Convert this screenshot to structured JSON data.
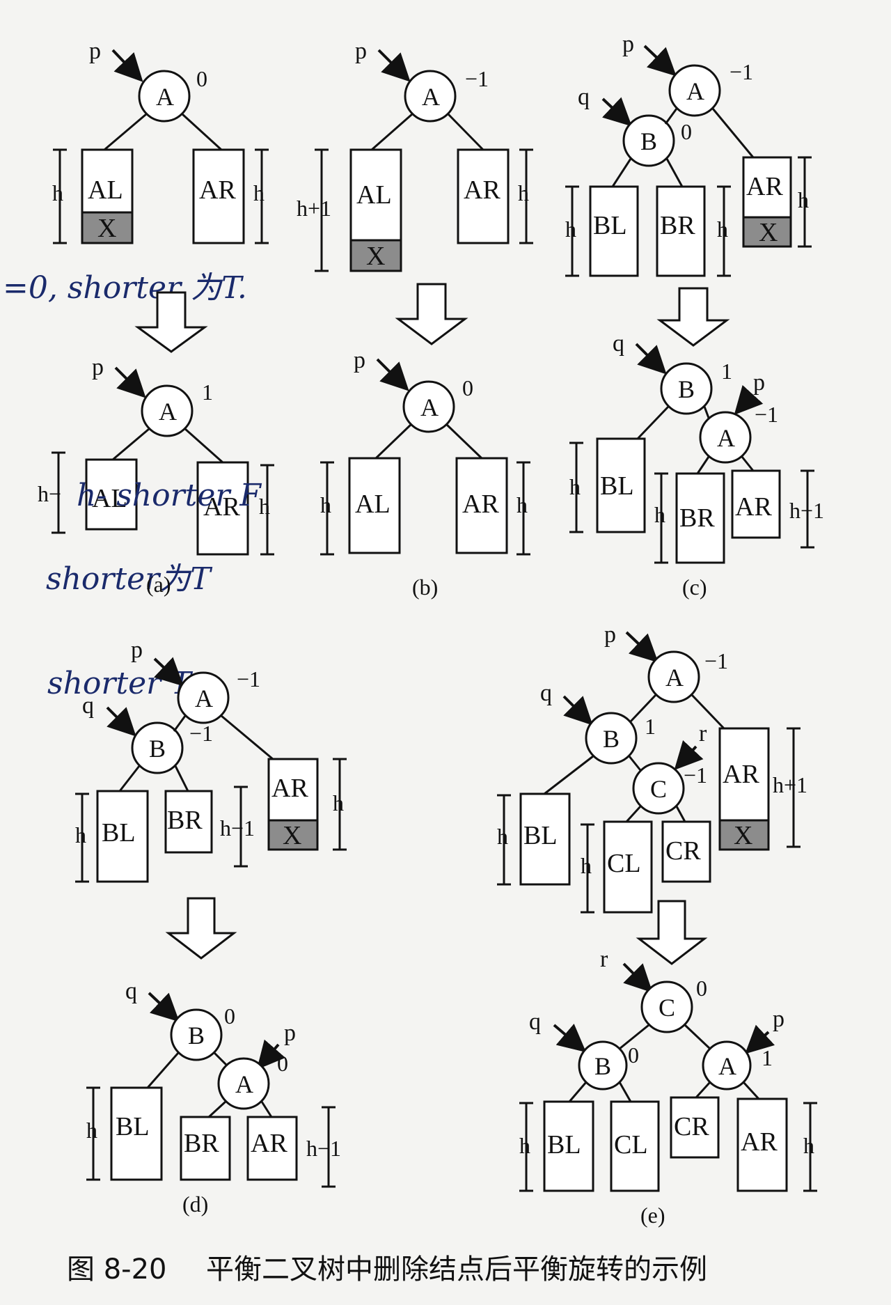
{
  "caption": {
    "figure_no": "图 8-20",
    "text": "平衡二叉树中删除结点后平衡旋转的示例"
  },
  "panels": {
    "a": "(a)",
    "b": "(b)",
    "c": "(c)",
    "d": "(d)",
    "e": "(e)"
  },
  "handwriting": {
    "note1": "=0, shorter 为T.",
    "note2": "h- shorter F",
    "note3": "shorter为T",
    "note4": "shorter T"
  },
  "labels": {
    "p": "p",
    "q": "q",
    "r": "r",
    "A": "A",
    "B": "B",
    "C": "C",
    "AL": "AL",
    "AR": "AR",
    "BL": "BL",
    "BR": "BR",
    "CL": "CL",
    "CR": "CR",
    "X": "X",
    "h": "h",
    "h_plus_1": "h+1",
    "h_minus_1": "h−1",
    "h_minus": "h−",
    "bal_0": "0",
    "bal_1": "1",
    "bal_neg1": "−1"
  }
}
